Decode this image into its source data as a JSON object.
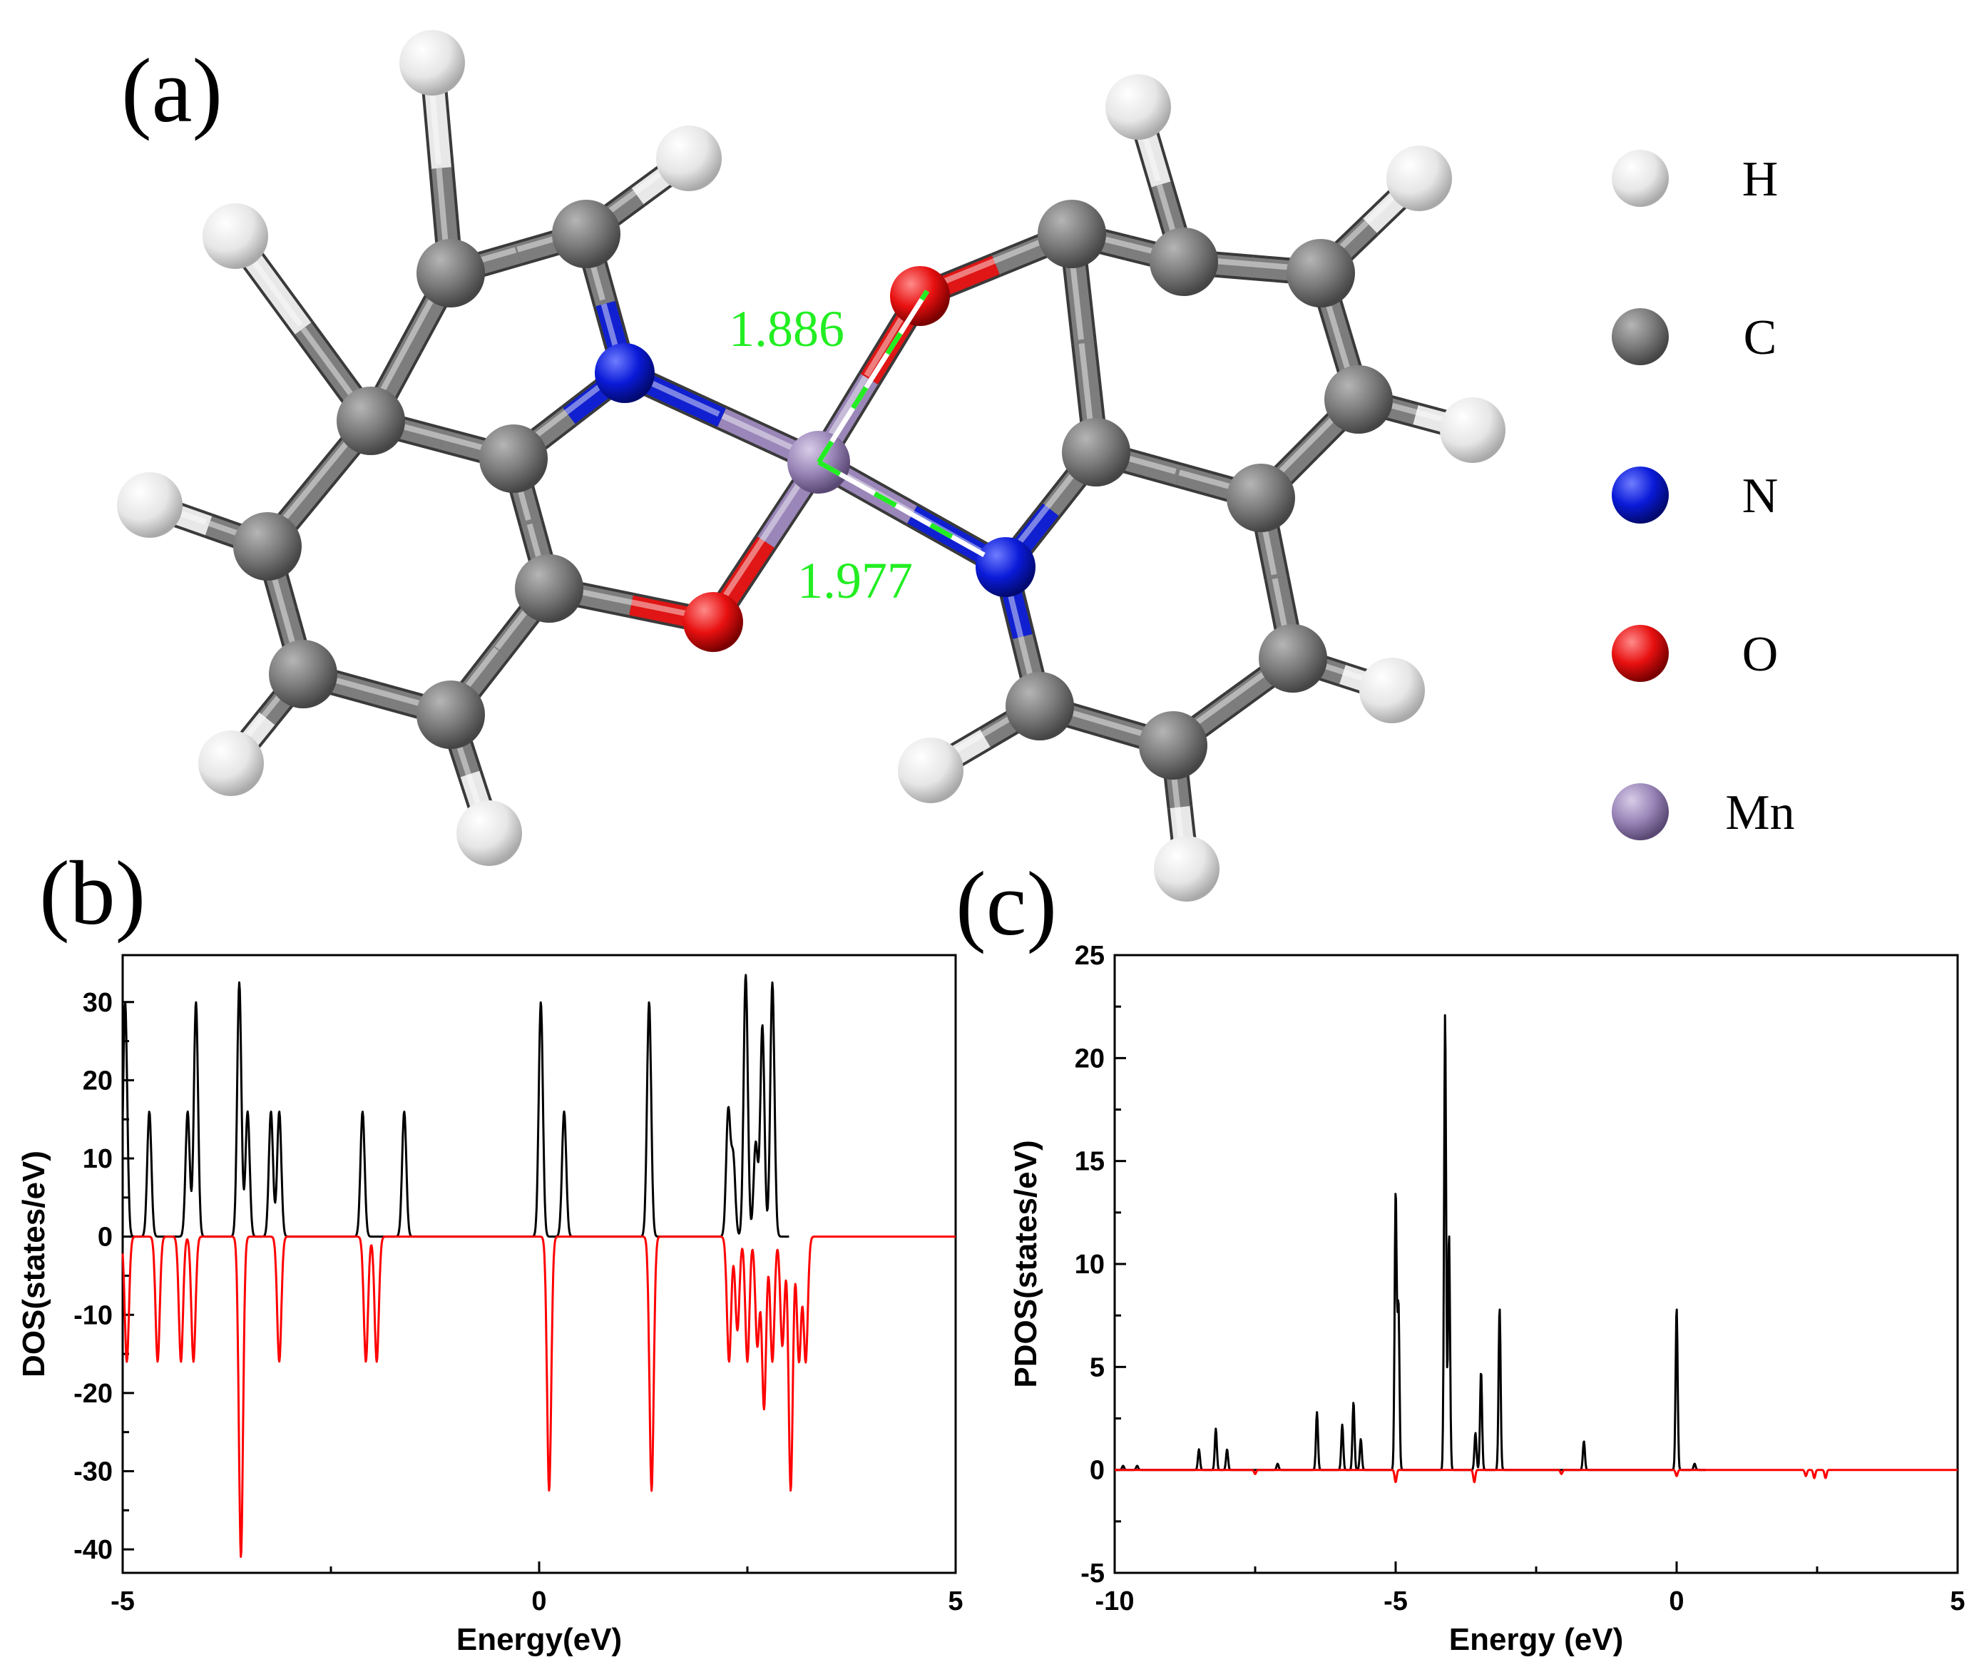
{
  "panel_a": {
    "label": "(a)",
    "bond_labels": [
      "1.886",
      "1.977"
    ],
    "legend": [
      {
        "symbol": "H",
        "color": "#eeeeee"
      },
      {
        "symbol": "C",
        "color": "#7a7a7a"
      },
      {
        "symbol": "N",
        "color": "#0a14d0"
      },
      {
        "symbol": "O",
        "color": "#e01010"
      },
      {
        "symbol": "Mn",
        "color": "#9a86b8"
      }
    ]
  },
  "chart_data": [
    {
      "panel": "(b)",
      "type": "line",
      "xlabel": "Energy(eV)",
      "ylabel": "DOS(states/eV)",
      "xlim": [
        -5,
        5
      ],
      "ylim": [
        -43,
        36
      ],
      "xticks": [
        -5,
        0,
        5
      ],
      "yticks": [
        30,
        20,
        10,
        0,
        -10,
        -20,
        -30,
        -40
      ],
      "grid": false,
      "series": [
        {
          "color": "#000000",
          "direction": "up",
          "peaks": [
            [
              -4.97,
              30
            ],
            [
              -4.68,
              16
            ],
            [
              -4.22,
              16
            ],
            [
              -4.12,
              30
            ],
            [
              -3.6,
              32.5
            ],
            [
              -3.5,
              16
            ],
            [
              -3.22,
              16
            ],
            [
              -3.12,
              16
            ],
            [
              -2.12,
              16
            ],
            [
              -1.62,
              16
            ],
            [
              0.02,
              30
            ],
            [
              0.3,
              16
            ],
            [
              1.32,
              30
            ],
            [
              2.27,
              16
            ],
            [
              2.48,
              33.5
            ],
            [
              2.68,
              27
            ],
            [
              2.8,
              32.5
            ],
            [
              2.6,
              12
            ],
            [
              2.33,
              10
            ]
          ]
        },
        {
          "color": "#ff0000",
          "direction": "down",
          "peaks": [
            [
              -4.95,
              -16
            ],
            [
              -4.58,
              -16
            ],
            [
              -4.3,
              -16
            ],
            [
              -4.15,
              -16
            ],
            [
              -3.58,
              -41
            ],
            [
              -3.12,
              -16
            ],
            [
              -2.08,
              -16
            ],
            [
              -1.95,
              -16
            ],
            [
              0.12,
              -32.5
            ],
            [
              1.35,
              -32.5
            ],
            [
              2.28,
              -16
            ],
            [
              2.38,
              -12
            ],
            [
              2.5,
              -16
            ],
            [
              2.62,
              -14
            ],
            [
              2.7,
              -22
            ],
            [
              2.8,
              -16
            ],
            [
              2.92,
              -14
            ],
            [
              3.02,
              -32.5
            ],
            [
              3.12,
              -16
            ],
            [
              3.2,
              -16
            ]
          ]
        }
      ]
    },
    {
      "panel": "(c)",
      "type": "line",
      "xlabel": "Energy (eV)",
      "ylabel": "PDOS(states/eV)",
      "xlim": [
        -10,
        5
      ],
      "ylim": [
        -5,
        25
      ],
      "xticks": [
        -10,
        -5,
        0,
        5
      ],
      "yticks": [
        25,
        20,
        15,
        10,
        5,
        0,
        -5
      ],
      "grid": false,
      "series": [
        {
          "color": "#000000",
          "direction": "up",
          "peaks": [
            [
              -9.85,
              0.2
            ],
            [
              -9.6,
              0.2
            ],
            [
              -8.5,
              1
            ],
            [
              -8.2,
              2
            ],
            [
              -8.0,
              1
            ],
            [
              -7.1,
              0.3
            ],
            [
              -6.4,
              2.8
            ],
            [
              -5.95,
              2.2
            ],
            [
              -5.75,
              3.3
            ],
            [
              -5.62,
              1.5
            ],
            [
              -5.0,
              13.5
            ],
            [
              -4.95,
              8
            ],
            [
              -4.12,
              22.2
            ],
            [
              -4.05,
              11.5
            ],
            [
              -3.58,
              1.8
            ],
            [
              -3.48,
              4.8
            ],
            [
              -3.15,
              7.9
            ],
            [
              -1.65,
              1.4
            ],
            [
              0.0,
              7.9
            ],
            [
              0.32,
              0.3
            ]
          ]
        },
        {
          "color": "#ff0000",
          "direction": "down",
          "peaks": [
            [
              -7.5,
              -0.2
            ],
            [
              -5.0,
              -0.6
            ],
            [
              -3.6,
              -0.6
            ],
            [
              -2.05,
              -0.2
            ],
            [
              0.0,
              -0.3
            ],
            [
              2.3,
              -0.3
            ],
            [
              2.45,
              -0.4
            ],
            [
              2.65,
              -0.4
            ]
          ]
        }
      ]
    }
  ]
}
